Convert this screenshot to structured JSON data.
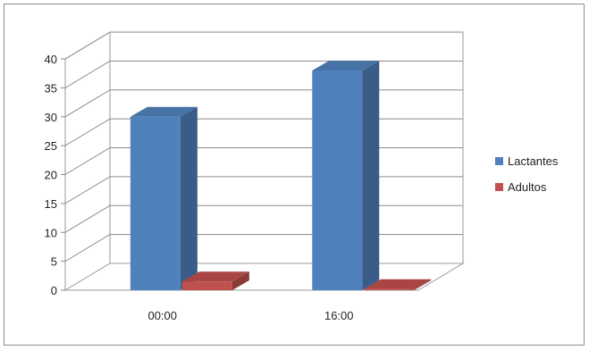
{
  "chart_data": {
    "type": "bar",
    "title": "",
    "xlabel": "",
    "ylabel": "",
    "categories": [
      "00:00",
      "16:00"
    ],
    "series": [
      {
        "name": "Lactantes",
        "values": [
          30,
          38
        ],
        "color": "#4f81bd"
      },
      {
        "name": "Adultos",
        "values": [
          1.5,
          0.2
        ],
        "color": "#c0504d"
      }
    ],
    "ylim": [
      0,
      40
    ],
    "yticks": [
      "0",
      "5",
      "10",
      "15",
      "20",
      "25",
      "30",
      "35",
      "40"
    ],
    "grid": true,
    "legend": "right",
    "style": "3d-column"
  }
}
